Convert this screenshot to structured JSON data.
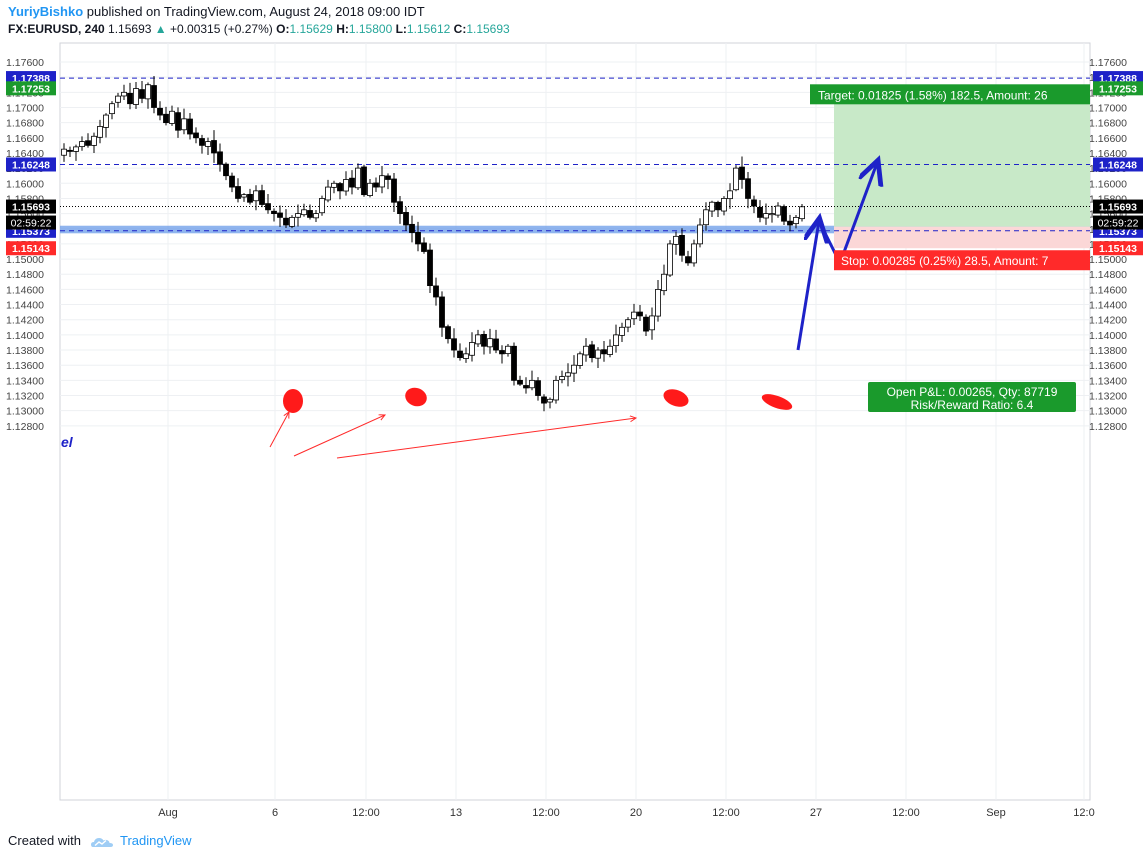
{
  "header": {
    "author": "YuriyBishko",
    "published": "published on TradingView.com, August 24, 2018 09:00 IDT",
    "symbol": "FX:EURUSD, 240",
    "last": "1.15693",
    "change": "+0.00315 (+0.27%)",
    "open_label": "O:",
    "open": "1.15629",
    "high_label": "H:",
    "high": "1.15800",
    "low_label": "L:",
    "low": "1.15612",
    "close_label": "C:",
    "close": "1.15693",
    "up_arrow": "▲"
  },
  "footer": {
    "created_with": "Created with",
    "brand": "TradingView"
  },
  "chart_data": {
    "type": "candlestick",
    "ylim": [
      1.127,
      1.177
    ],
    "y_ticks": [
      "1.17600",
      "1.17400",
      "1.17200",
      "1.17000",
      "1.16800",
      "1.16600",
      "1.16400",
      "1.16200",
      "1.16000",
      "1.15800",
      "1.15600",
      "1.15400",
      "1.15200",
      "1.15000",
      "1.14800",
      "1.14600",
      "1.14400",
      "1.14200",
      "1.14000",
      "1.13800",
      "1.13600",
      "1.13400",
      "1.13200",
      "1.13000",
      "1.12800"
    ],
    "x_ticks": [
      "Aug",
      "6",
      "12:00",
      "13",
      "12:00",
      "20",
      "12:00",
      "27",
      "12:00",
      "Sep",
      "12:0"
    ],
    "close_path": [
      1.1645,
      1.1642,
      1.1648,
      1.1655,
      1.165,
      1.1662,
      1.1675,
      1.169,
      1.1705,
      1.1715,
      1.172,
      1.1705,
      1.1725,
      1.1712,
      1.173,
      1.17,
      1.169,
      1.168,
      1.1695,
      1.167,
      1.1685,
      1.1665,
      1.166,
      1.165,
      1.1655,
      1.164,
      1.1625,
      1.161,
      1.1595,
      1.158,
      1.1585,
      1.1575,
      1.159,
      1.1572,
      1.1565,
      1.156,
      1.1555,
      1.1545,
      1.1555,
      1.156,
      1.1565,
      1.1555,
      1.156,
      1.158,
      1.1595,
      1.16,
      1.159,
      1.1605,
      1.1595,
      1.162,
      1.1585,
      1.16,
      1.1595,
      1.161,
      1.1605,
      1.1575,
      1.156,
      1.1545,
      1.1535,
      1.152,
      1.151,
      1.1465,
      1.145,
      1.141,
      1.1395,
      1.138,
      1.137,
      1.1375,
      1.139,
      1.14,
      1.1385,
      1.1395,
      1.138,
      1.1375,
      1.1385,
      1.134,
      1.1335,
      1.133,
      1.134,
      1.132,
      1.131,
      1.1315,
      1.134,
      1.1345,
      1.135,
      1.136,
      1.1375,
      1.1385,
      1.137,
      1.138,
      1.1375,
      1.1385,
      1.14,
      1.141,
      1.142,
      1.143,
      1.1425,
      1.1405,
      1.1425,
      1.146,
      1.148,
      1.152,
      1.153,
      1.1505,
      1.1495,
      1.152,
      1.1545,
      1.1565,
      1.1575,
      1.1565,
      1.158,
      1.159,
      1.162,
      1.1605,
      1.158,
      1.157,
      1.1555,
      1.156,
      1.156,
      1.157,
      1.155,
      1.1545,
      1.1555,
      1.1569
    ],
    "close_idx": [
      0,
      5,
      12,
      18,
      25,
      35,
      38,
      46,
      50,
      58,
      64,
      69,
      80,
      92,
      101,
      104,
      113,
      121
    ],
    "series_close": [
      1.1645,
      1.166,
      1.1725,
      1.1685,
      1.1645,
      1.156,
      1.1545,
      1.161,
      1.162,
      1.1535,
      1.139,
      1.137,
      1.1315,
      1.142,
      1.148,
      1.1505,
      1.162,
      1.15693
    ],
    "current_price": "1.15693",
    "countdown": "02:59:22",
    "levels": [
      {
        "price": "1.17388",
        "color": "#1e22c8"
      },
      {
        "price": "1.17253",
        "color": "#1a9a2c"
      },
      {
        "price": "1.16248",
        "color": "#1e22c8"
      },
      {
        "price": "1.15428",
        "color": "#555555"
      },
      {
        "price": "1.15373",
        "color": "#1e22c8"
      },
      {
        "price": "1.15143",
        "color": "#ff2a2a"
      }
    ],
    "support_zone": [
      1.1534,
      1.1544
    ],
    "position": {
      "target_label": "Target: 0.01825 (1.58%) 182.5, Amount: 26",
      "stop_label": "Stop: 0.00285 (0.25%) 28.5, Amount: 7",
      "pnl_label": "Open P&L: 0.00265, Qty: 87719",
      "rr_label": "Risk/Reward Ratio: 6.4",
      "entry": 1.15428,
      "target": 1.17253,
      "stop": 1.15143
    },
    "partial_label": "el",
    "colors": {
      "up": "#ffffff",
      "down": "#000000",
      "target_fill": "#c8e9c8",
      "stop_fill": "#fbd7d7",
      "zone": "#6a9be8",
      "target_badge": "#1a9a2c",
      "stop_badge": "#ff2a2a",
      "arrow_blue": "#1e22c8",
      "arrow_red": "#ff2a2a",
      "ellipse": "#ff1a1a"
    }
  }
}
